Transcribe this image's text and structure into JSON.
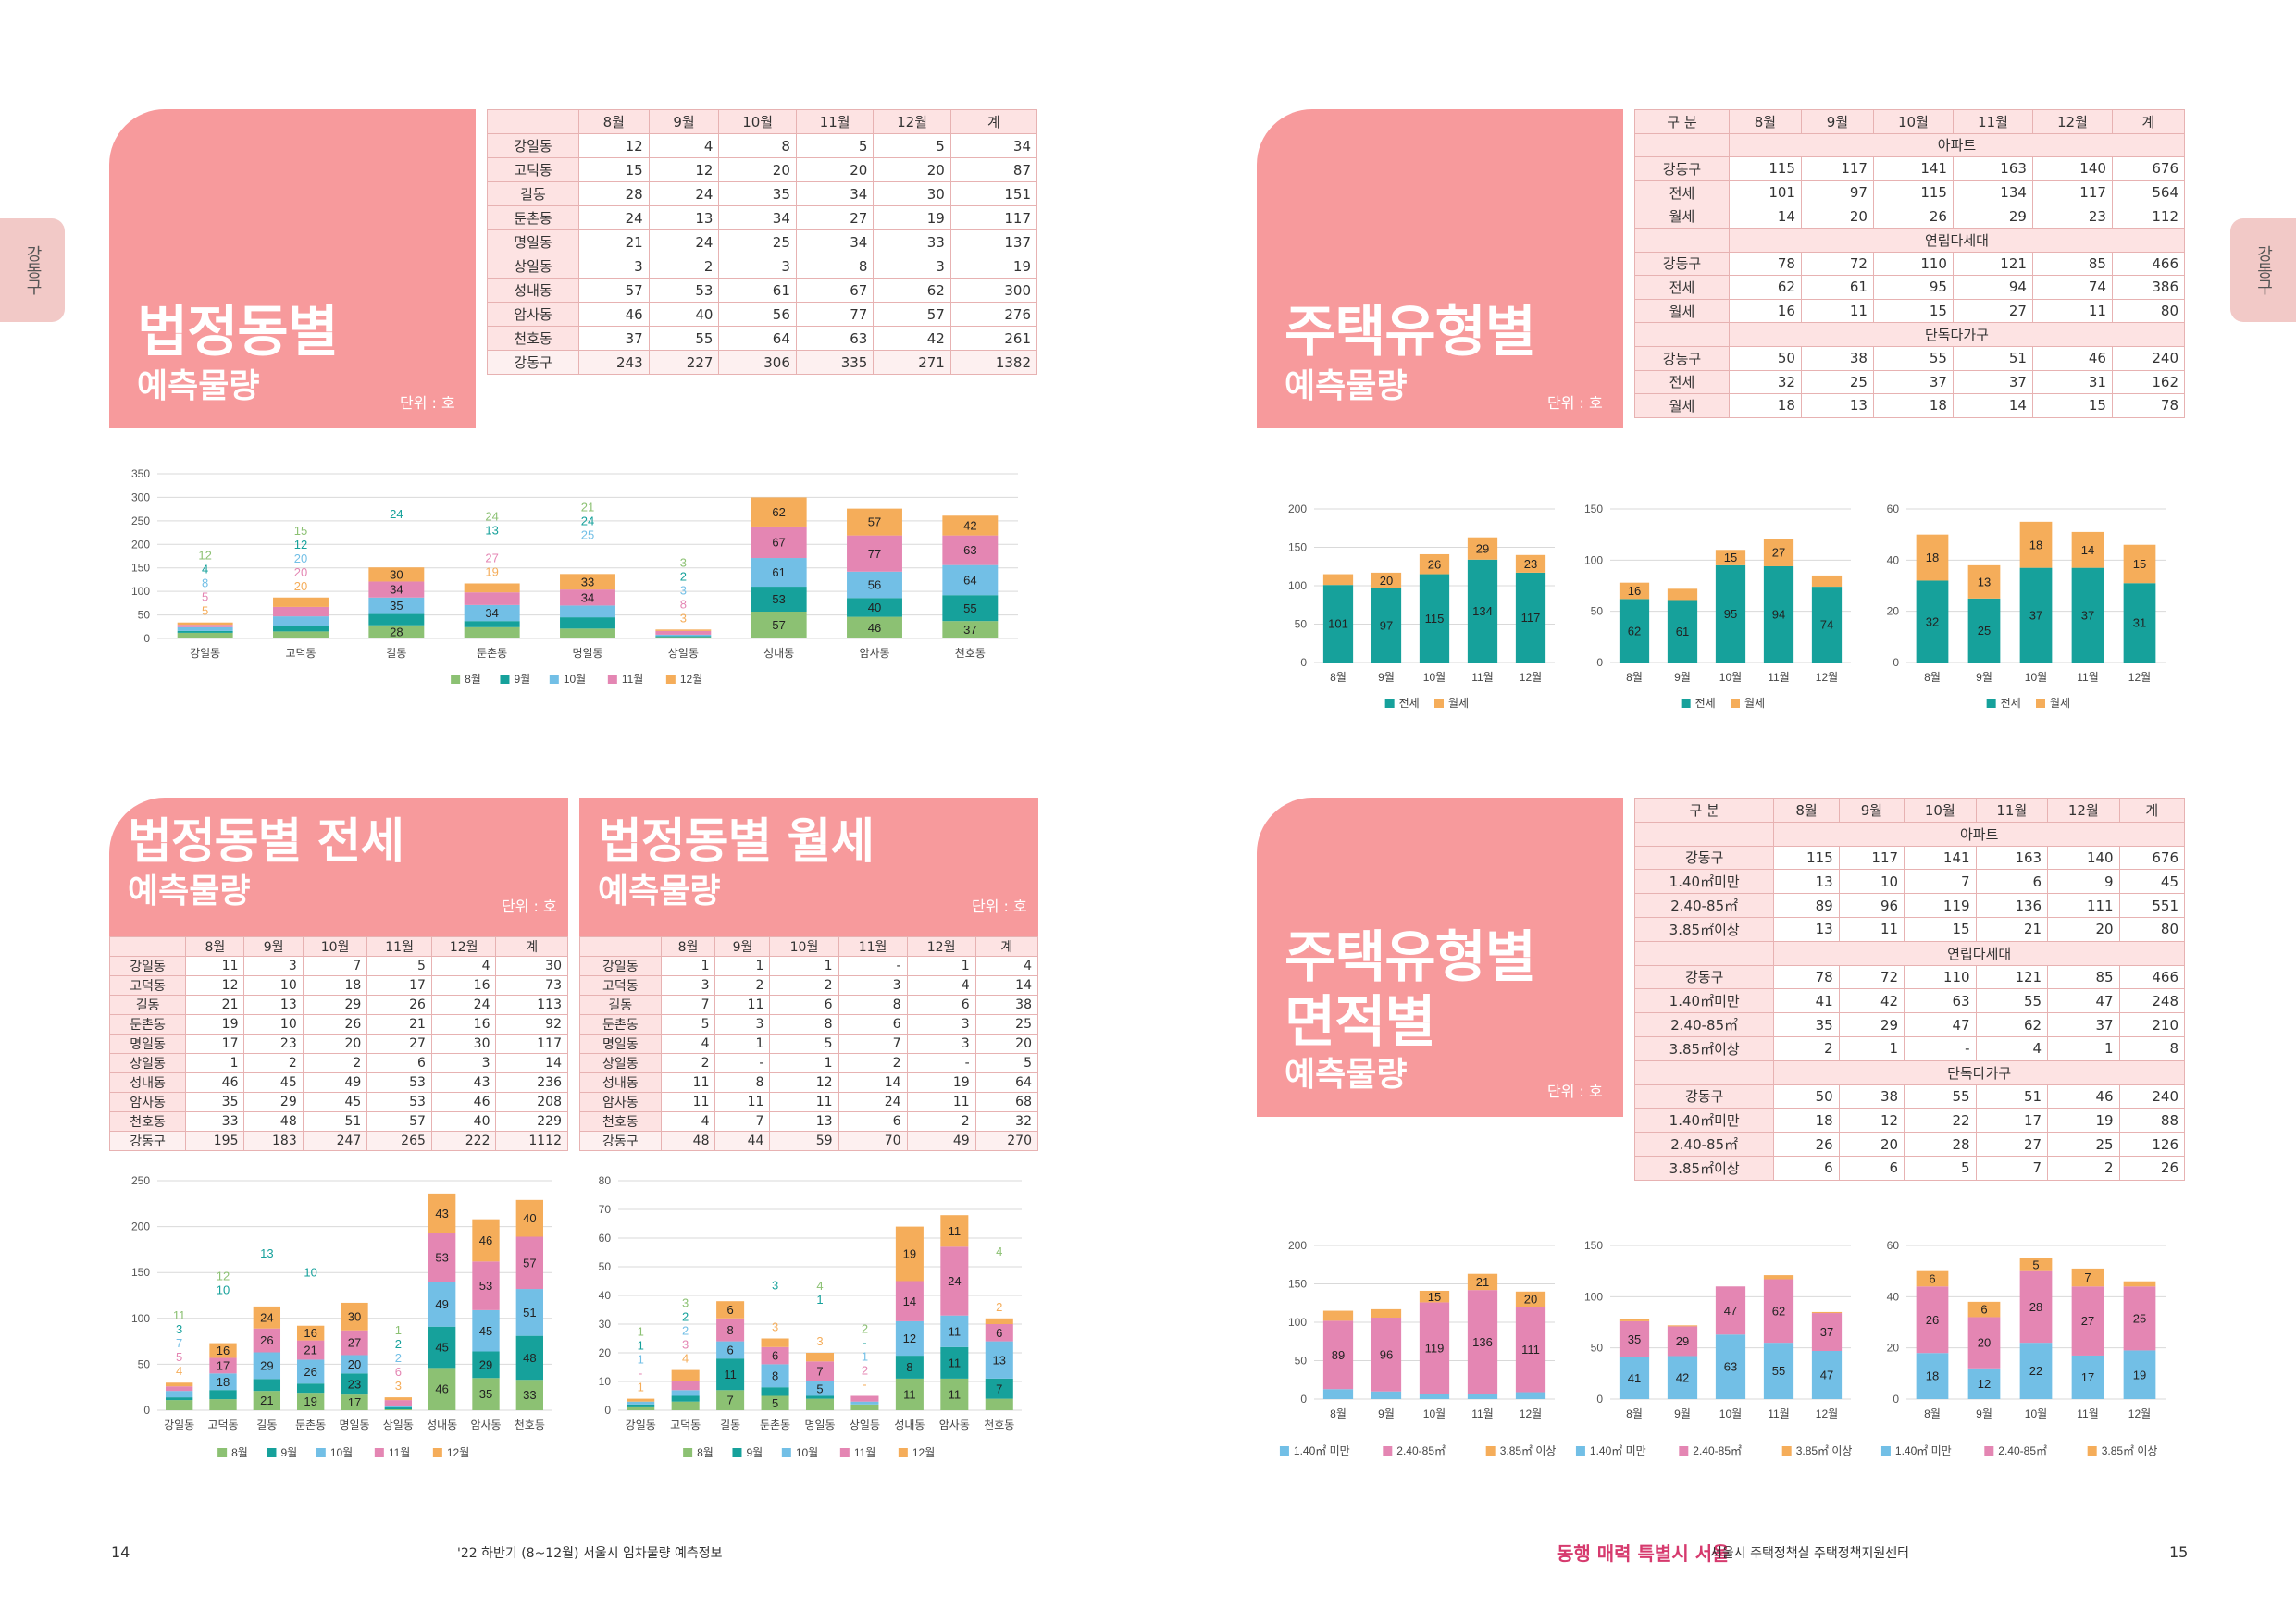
{
  "side_tab": "강동구",
  "colors": {
    "aug": "#8cc173",
    "sep": "#16a19b",
    "oct": "#72bfe6",
    "nov": "#e486b3",
    "dec": "#f5ad5a",
    "jeonse": "#16a19b",
    "wolse": "#f5ad5a",
    "size1": "#72bfe6",
    "size2": "#e486b3",
    "size3": "#f5ad5a"
  },
  "p1": {
    "title": "법정동별",
    "subtitle": "예측물량",
    "unit": "단위 : 호",
    "columns": [
      "",
      "8월",
      "9월",
      "10월",
      "11월",
      "12월",
      "계"
    ],
    "rows": [
      [
        "강일동",
        "12",
        "4",
        "8",
        "5",
        "5",
        "34"
      ],
      [
        "고덕동",
        "15",
        "12",
        "20",
        "20",
        "20",
        "87"
      ],
      [
        "길동",
        "28",
        "24",
        "35",
        "34",
        "30",
        "151"
      ],
      [
        "둔촌동",
        "24",
        "13",
        "34",
        "27",
        "19",
        "117"
      ],
      [
        "명일동",
        "21",
        "24",
        "25",
        "34",
        "33",
        "137"
      ],
      [
        "상일동",
        "3",
        "2",
        "3",
        "8",
        "3",
        "19"
      ],
      [
        "성내동",
        "57",
        "53",
        "61",
        "67",
        "62",
        "300"
      ],
      [
        "암사동",
        "46",
        "40",
        "56",
        "77",
        "57",
        "276"
      ],
      [
        "천호동",
        "37",
        "55",
        "64",
        "63",
        "42",
        "261"
      ],
      [
        "강동구",
        "243",
        "227",
        "306",
        "335",
        "271",
        "1382"
      ]
    ]
  },
  "p2": {
    "title": "주택유형별",
    "subtitle": "예측물량",
    "unit": "단위 : 호",
    "columns": [
      "구 분",
      "8월",
      "9월",
      "10월",
      "11월",
      "12월",
      "계"
    ],
    "sections": [
      {
        "name": "아파트",
        "rows": [
          [
            "강동구",
            "115",
            "117",
            "141",
            "163",
            "140",
            "676"
          ],
          [
            "전세",
            "101",
            "97",
            "115",
            "134",
            "117",
            "564"
          ],
          [
            "월세",
            "14",
            "20",
            "26",
            "29",
            "23",
            "112"
          ]
        ]
      },
      {
        "name": "연립다세대",
        "rows": [
          [
            "강동구",
            "78",
            "72",
            "110",
            "121",
            "85",
            "466"
          ],
          [
            "전세",
            "62",
            "61",
            "95",
            "94",
            "74",
            "386"
          ],
          [
            "월세",
            "16",
            "11",
            "15",
            "27",
            "11",
            "80"
          ]
        ]
      },
      {
        "name": "단독다가구",
        "rows": [
          [
            "강동구",
            "50",
            "38",
            "55",
            "51",
            "46",
            "240"
          ],
          [
            "전세",
            "32",
            "25",
            "37",
            "37",
            "31",
            "162"
          ],
          [
            "월세",
            "18",
            "13",
            "18",
            "14",
            "15",
            "78"
          ]
        ]
      }
    ]
  },
  "p3": {
    "title": "법정동별 전세",
    "subtitle": "예측물량",
    "unit": "단위 : 호",
    "columns": [
      "",
      "8월",
      "9월",
      "10월",
      "11월",
      "12월",
      "계"
    ],
    "rows": [
      [
        "강일동",
        "11",
        "3",
        "7",
        "5",
        "4",
        "30"
      ],
      [
        "고덕동",
        "12",
        "10",
        "18",
        "17",
        "16",
        "73"
      ],
      [
        "길동",
        "21",
        "13",
        "29",
        "26",
        "24",
        "113"
      ],
      [
        "둔촌동",
        "19",
        "10",
        "26",
        "21",
        "16",
        "92"
      ],
      [
        "명일동",
        "17",
        "23",
        "20",
        "27",
        "30",
        "117"
      ],
      [
        "상일동",
        "1",
        "2",
        "2",
        "6",
        "3",
        "14"
      ],
      [
        "성내동",
        "46",
        "45",
        "49",
        "53",
        "43",
        "236"
      ],
      [
        "암사동",
        "35",
        "29",
        "45",
        "53",
        "46",
        "208"
      ],
      [
        "천호동",
        "33",
        "48",
        "51",
        "57",
        "40",
        "229"
      ],
      [
        "강동구",
        "195",
        "183",
        "247",
        "265",
        "222",
        "1112"
      ]
    ]
  },
  "p4": {
    "title": "법정동별 월세",
    "subtitle": "예측물량",
    "unit": "단위 : 호",
    "columns": [
      "",
      "8월",
      "9월",
      "10월",
      "11월",
      "12월",
      "계"
    ],
    "rows": [
      [
        "강일동",
        "1",
        "1",
        "1",
        "-",
        "1",
        "4"
      ],
      [
        "고덕동",
        "3",
        "2",
        "2",
        "3",
        "4",
        "14"
      ],
      [
        "길동",
        "7",
        "11",
        "6",
        "8",
        "6",
        "38"
      ],
      [
        "둔촌동",
        "5",
        "3",
        "8",
        "6",
        "3",
        "25"
      ],
      [
        "명일동",
        "4",
        "1",
        "5",
        "7",
        "3",
        "20"
      ],
      [
        "상일동",
        "2",
        "-",
        "1",
        "2",
        "-",
        "5"
      ],
      [
        "성내동",
        "11",
        "8",
        "12",
        "14",
        "19",
        "64"
      ],
      [
        "암사동",
        "11",
        "11",
        "11",
        "24",
        "11",
        "68"
      ],
      [
        "천호동",
        "4",
        "7",
        "13",
        "6",
        "2",
        "32"
      ],
      [
        "강동구",
        "48",
        "44",
        "59",
        "70",
        "49",
        "270"
      ]
    ]
  },
  "p5": {
    "title": "주택유형별",
    "title2": "면적별",
    "subtitle": "예측물량",
    "unit": "단위 : 호",
    "columns": [
      "구 분",
      "8월",
      "9월",
      "10월",
      "11월",
      "12월",
      "계"
    ],
    "sections": [
      {
        "name": "아파트",
        "rows": [
          [
            "강동구",
            "115",
            "117",
            "141",
            "163",
            "140",
            "676"
          ],
          [
            "1.40㎡미만",
            "13",
            "10",
            "7",
            "6",
            "9",
            "45"
          ],
          [
            "2.40-85㎡",
            "89",
            "96",
            "119",
            "136",
            "111",
            "551"
          ],
          [
            "3.85㎡이상",
            "13",
            "11",
            "15",
            "21",
            "20",
            "80"
          ]
        ]
      },
      {
        "name": "연립다세대",
        "rows": [
          [
            "강동구",
            "78",
            "72",
            "110",
            "121",
            "85",
            "466"
          ],
          [
            "1.40㎡미만",
            "41",
            "42",
            "63",
            "55",
            "47",
            "248"
          ],
          [
            "2.40-85㎡",
            "35",
            "29",
            "47",
            "62",
            "37",
            "210"
          ],
          [
            "3.85㎡이상",
            "2",
            "1",
            "-",
            "4",
            "1",
            "8"
          ]
        ]
      },
      {
        "name": "단독다가구",
        "rows": [
          [
            "강동구",
            "50",
            "38",
            "55",
            "51",
            "46",
            "240"
          ],
          [
            "1.40㎡미만",
            "18",
            "12",
            "22",
            "17",
            "19",
            "88"
          ],
          [
            "2.40-85㎡",
            "26",
            "20",
            "28",
            "27",
            "25",
            "126"
          ],
          [
            "3.85㎡이상",
            "6",
            "6",
            "5",
            "7",
            "2",
            "26"
          ]
        ]
      }
    ]
  },
  "chart_data": [
    {
      "id": "c1",
      "type": "bar",
      "stacked": true,
      "categories": [
        "강일동",
        "고덕동",
        "길동",
        "둔촌동",
        "명일동",
        "상일동",
        "성내동",
        "암사동",
        "천호동"
      ],
      "series": [
        {
          "name": "8월",
          "values": [
            12,
            15,
            28,
            24,
            21,
            3,
            57,
            46,
            37
          ]
        },
        {
          "name": "9월",
          "values": [
            4,
            12,
            24,
            13,
            24,
            2,
            53,
            40,
            55
          ]
        },
        {
          "name": "10월",
          "values": [
            8,
            20,
            35,
            34,
            25,
            3,
            61,
            56,
            64
          ]
        },
        {
          "name": "11월",
          "values": [
            5,
            20,
            34,
            27,
            34,
            8,
            67,
            77,
            63
          ]
        },
        {
          "name": "12월",
          "values": [
            5,
            20,
            30,
            19,
            33,
            3,
            62,
            57,
            42
          ]
        }
      ],
      "ylim": [
        0,
        350
      ],
      "yticks": [
        0,
        50,
        100,
        150,
        200,
        250,
        300,
        350
      ],
      "legend": "bottom",
      "grid": true
    },
    {
      "id": "c2",
      "type": "bar",
      "stacked": true,
      "categories": [
        "8월",
        "9월",
        "10월",
        "11월",
        "12월"
      ],
      "series": [
        {
          "name": "전세",
          "values": [
            101,
            97,
            115,
            134,
            117
          ]
        },
        {
          "name": "월세",
          "values": [
            14,
            20,
            26,
            29,
            23
          ]
        }
      ],
      "ylim": [
        0,
        200
      ],
      "yticks": [
        0,
        50,
        100,
        150,
        200
      ],
      "legend": "bottom",
      "grid": true
    },
    {
      "id": "c3",
      "type": "bar",
      "stacked": true,
      "categories": [
        "8월",
        "9월",
        "10월",
        "11월",
        "12월"
      ],
      "series": [
        {
          "name": "전세",
          "values": [
            62,
            61,
            95,
            94,
            74
          ]
        },
        {
          "name": "월세",
          "values": [
            16,
            11,
            15,
            27,
            11
          ]
        }
      ],
      "ylim": [
        0,
        150
      ],
      "yticks": [
        0,
        50,
        100,
        150
      ],
      "legend": "bottom",
      "grid": true
    },
    {
      "id": "c4",
      "type": "bar",
      "stacked": true,
      "categories": [
        "8월",
        "9월",
        "10월",
        "11월",
        "12월"
      ],
      "series": [
        {
          "name": "전세",
          "values": [
            32,
            25,
            37,
            37,
            31
          ]
        },
        {
          "name": "월세",
          "values": [
            18,
            13,
            18,
            14,
            15
          ]
        }
      ],
      "ylim": [
        0,
        60
      ],
      "yticks": [
        0,
        20,
        40,
        60
      ],
      "legend": "bottom",
      "grid": true
    },
    {
      "id": "c5",
      "type": "bar",
      "stacked": true,
      "categories": [
        "강일동",
        "고덕동",
        "길동",
        "둔촌동",
        "명일동",
        "상일동",
        "성내동",
        "암사동",
        "천호동"
      ],
      "series": [
        {
          "name": "8월",
          "values": [
            11,
            12,
            21,
            19,
            17,
            1,
            46,
            35,
            33
          ]
        },
        {
          "name": "9월",
          "values": [
            3,
            10,
            13,
            10,
            23,
            2,
            45,
            29,
            48
          ]
        },
        {
          "name": "10월",
          "values": [
            7,
            18,
            29,
            26,
            20,
            2,
            49,
            45,
            51
          ]
        },
        {
          "name": "11월",
          "values": [
            5,
            17,
            26,
            21,
            27,
            6,
            53,
            53,
            57
          ]
        },
        {
          "name": "12월",
          "values": [
            4,
            16,
            24,
            16,
            30,
            3,
            43,
            46,
            40
          ]
        }
      ],
      "ylim": [
        0,
        250
      ],
      "yticks": [
        0,
        50,
        100,
        150,
        200,
        250
      ],
      "legend": "bottom",
      "grid": true
    },
    {
      "id": "c6",
      "type": "bar",
      "stacked": true,
      "categories": [
        "강일동",
        "고덕동",
        "길동",
        "둔촌동",
        "명일동",
        "상일동",
        "성내동",
        "암사동",
        "천호동"
      ],
      "series": [
        {
          "name": "8월",
          "values": [
            1,
            3,
            7,
            5,
            4,
            2,
            11,
            11,
            4
          ]
        },
        {
          "name": "9월",
          "values": [
            1,
            2,
            11,
            3,
            1,
            0,
            8,
            11,
            7
          ]
        },
        {
          "name": "10월",
          "values": [
            1,
            2,
            6,
            8,
            5,
            1,
            12,
            11,
            13
          ]
        },
        {
          "name": "11월",
          "values": [
            0,
            3,
            8,
            6,
            7,
            2,
            14,
            24,
            6
          ]
        },
        {
          "name": "12월",
          "values": [
            1,
            4,
            6,
            3,
            3,
            0,
            19,
            11,
            2
          ]
        }
      ],
      "ylim": [
        0,
        80
      ],
      "yticks": [
        0,
        10,
        20,
        30,
        40,
        50,
        60,
        70,
        80
      ],
      "legend": "bottom",
      "grid": true
    },
    {
      "id": "c7",
      "type": "bar",
      "stacked": true,
      "categories": [
        "8월",
        "9월",
        "10월",
        "11월",
        "12월"
      ],
      "series": [
        {
          "name": "1.40㎡ 미만",
          "values": [
            13,
            10,
            7,
            6,
            9
          ]
        },
        {
          "name": "2.40-85㎡",
          "values": [
            89,
            96,
            119,
            136,
            111
          ]
        },
        {
          "name": "3.85㎡ 이상",
          "values": [
            13,
            11,
            15,
            21,
            20
          ]
        }
      ],
      "ylim": [
        0,
        200
      ],
      "yticks": [
        0,
        50,
        100,
        150,
        200
      ],
      "legend": "bottom",
      "grid": true
    },
    {
      "id": "c8",
      "type": "bar",
      "stacked": true,
      "categories": [
        "8월",
        "9월",
        "10월",
        "11월",
        "12월"
      ],
      "series": [
        {
          "name": "1.40㎡ 미만",
          "values": [
            41,
            42,
            63,
            55,
            47
          ]
        },
        {
          "name": "2.40-85㎡",
          "values": [
            35,
            29,
            47,
            62,
            37
          ]
        },
        {
          "name": "3.85㎡ 이상",
          "values": [
            2,
            1,
            0,
            4,
            1
          ]
        }
      ],
      "ylim": [
        0,
        150
      ],
      "yticks": [
        0,
        50,
        100,
        150
      ],
      "legend": "bottom",
      "grid": true
    },
    {
      "id": "c9",
      "type": "bar",
      "stacked": true,
      "categories": [
        "8월",
        "9월",
        "10월",
        "11월",
        "12월"
      ],
      "series": [
        {
          "name": "1.40㎡ 미만",
          "values": [
            18,
            12,
            22,
            17,
            19
          ]
        },
        {
          "name": "2.40-85㎡",
          "values": [
            26,
            20,
            28,
            27,
            25
          ]
        },
        {
          "name": "3.85㎡ 이상",
          "values": [
            6,
            6,
            5,
            7,
            2
          ]
        }
      ],
      "ylim": [
        0,
        60
      ],
      "yticks": [
        0,
        20,
        40,
        60
      ],
      "legend": "bottom",
      "grid": true
    }
  ],
  "footer": {
    "page_left": "14",
    "pub_title": "'22 하반기 (8~12월) 서울시 임차물량 예측정보",
    "logo": "동행 매력 특별시 서울",
    "org": "서울시 주택정책실 주택정책지원센터",
    "page_right": "15"
  }
}
